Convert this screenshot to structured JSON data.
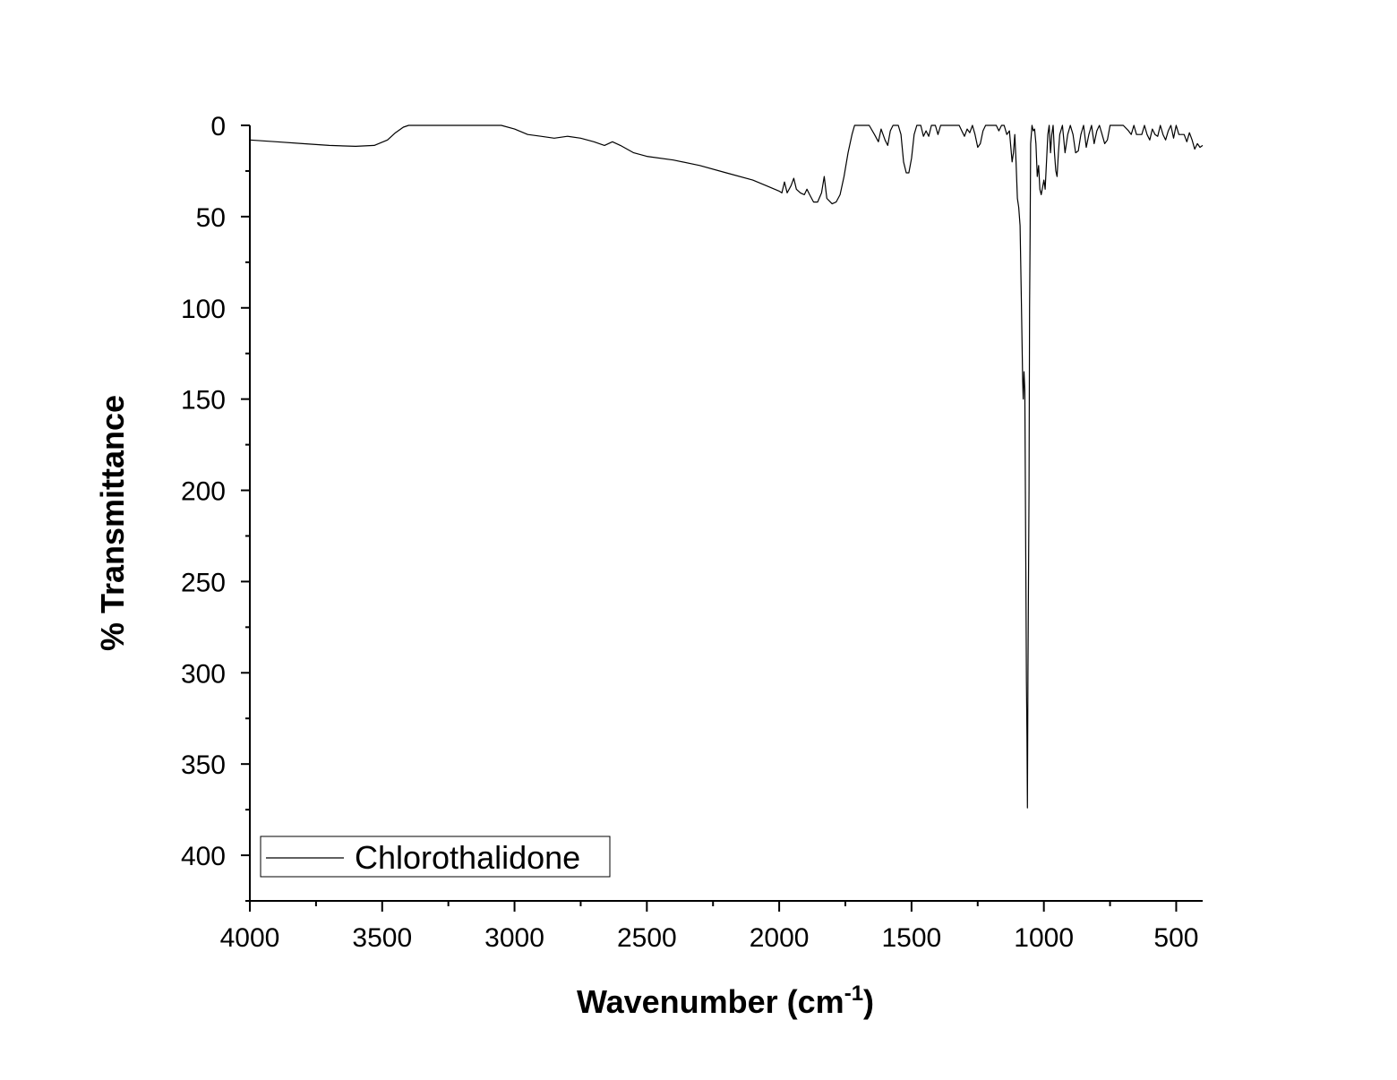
{
  "chart_data": {
    "type": "line",
    "title": "",
    "xlabel": {
      "text": "Wavenumber (cm",
      "superscript": "-1",
      "suffix": ")"
    },
    "ylabel": "% Transmittance",
    "xlim": [
      4000,
      400
    ],
    "ylim": [
      0,
      425
    ],
    "y_inverted": true,
    "x_inverted": true,
    "xticks": [
      4000,
      3500,
      3000,
      2500,
      2000,
      1500,
      1000,
      500
    ],
    "xtick_labels": [
      "4000",
      "3500",
      "3000",
      "2500",
      "2000",
      "1500",
      "1000",
      "500"
    ],
    "yticks": [
      0,
      50,
      100,
      150,
      200,
      250,
      300,
      350,
      400
    ],
    "ytick_labels": [
      "0",
      "50",
      "100",
      "150",
      "200",
      "250",
      "300",
      "350",
      "400"
    ],
    "grid": false,
    "legend_position": "bottom-left",
    "series": [
      {
        "name": "Chlorothalidone",
        "color": "#000000",
        "points": [
          [
            4000,
            8
          ],
          [
            3900,
            9
          ],
          [
            3800,
            10
          ],
          [
            3700,
            11
          ],
          [
            3600,
            11.5
          ],
          [
            3530,
            11
          ],
          [
            3480,
            8
          ],
          [
            3450,
            4
          ],
          [
            3420,
            1
          ],
          [
            3400,
            0
          ],
          [
            3300,
            0
          ],
          [
            3200,
            0
          ],
          [
            3100,
            0
          ],
          [
            3050,
            0
          ],
          [
            3000,
            2
          ],
          [
            2950,
            5
          ],
          [
            2900,
            6
          ],
          [
            2850,
            7
          ],
          [
            2800,
            6
          ],
          [
            2750,
            7
          ],
          [
            2700,
            9
          ],
          [
            2660,
            11
          ],
          [
            2630,
            9
          ],
          [
            2600,
            11
          ],
          [
            2550,
            15
          ],
          [
            2500,
            17
          ],
          [
            2400,
            19
          ],
          [
            2300,
            22
          ],
          [
            2200,
            26
          ],
          [
            2100,
            30
          ],
          [
            2050,
            33
          ],
          [
            2000,
            36
          ],
          [
            1990,
            37
          ],
          [
            1980,
            31
          ],
          [
            1970,
            37
          ],
          [
            1955,
            33
          ],
          [
            1945,
            29
          ],
          [
            1935,
            35
          ],
          [
            1920,
            37
          ],
          [
            1905,
            38
          ],
          [
            1895,
            35
          ],
          [
            1885,
            38
          ],
          [
            1870,
            42
          ],
          [
            1855,
            42
          ],
          [
            1840,
            37
          ],
          [
            1830,
            28
          ],
          [
            1820,
            40
          ],
          [
            1800,
            43
          ],
          [
            1785,
            42
          ],
          [
            1770,
            38
          ],
          [
            1755,
            28
          ],
          [
            1740,
            15
          ],
          [
            1725,
            5
          ],
          [
            1715,
            0
          ],
          [
            1680,
            0
          ],
          [
            1660,
            0
          ],
          [
            1640,
            5
          ],
          [
            1625,
            9
          ],
          [
            1615,
            2
          ],
          [
            1600,
            8
          ],
          [
            1590,
            11
          ],
          [
            1580,
            3
          ],
          [
            1570,
            0
          ],
          [
            1550,
            0
          ],
          [
            1540,
            5
          ],
          [
            1530,
            20
          ],
          [
            1520,
            26
          ],
          [
            1510,
            26
          ],
          [
            1500,
            18
          ],
          [
            1490,
            5
          ],
          [
            1480,
            0
          ],
          [
            1465,
            0
          ],
          [
            1455,
            6
          ],
          [
            1445,
            3
          ],
          [
            1435,
            6
          ],
          [
            1425,
            0
          ],
          [
            1410,
            0
          ],
          [
            1400,
            5
          ],
          [
            1390,
            0
          ],
          [
            1370,
            0
          ],
          [
            1340,
            0
          ],
          [
            1320,
            0
          ],
          [
            1310,
            3
          ],
          [
            1300,
            6
          ],
          [
            1290,
            2
          ],
          [
            1280,
            4
          ],
          [
            1270,
            0
          ],
          [
            1260,
            5
          ],
          [
            1250,
            12
          ],
          [
            1240,
            10
          ],
          [
            1230,
            3
          ],
          [
            1220,
            0
          ],
          [
            1200,
            0
          ],
          [
            1180,
            0
          ],
          [
            1170,
            3
          ],
          [
            1160,
            0
          ],
          [
            1150,
            0
          ],
          [
            1140,
            5
          ],
          [
            1130,
            3
          ],
          [
            1120,
            20
          ],
          [
            1115,
            15
          ],
          [
            1110,
            5
          ],
          [
            1105,
            20
          ],
          [
            1100,
            40
          ],
          [
            1095,
            45
          ],
          [
            1090,
            55
          ],
          [
            1085,
            95
          ],
          [
            1080,
            140
          ],
          [
            1078,
            150
          ],
          [
            1075,
            135
          ],
          [
            1072,
            145
          ],
          [
            1068,
            250
          ],
          [
            1066,
            305
          ],
          [
            1064,
            335
          ],
          [
            1062,
            374
          ],
          [
            1060,
            300
          ],
          [
            1058,
            250
          ],
          [
            1056,
            200
          ],
          [
            1054,
            100
          ],
          [
            1052,
            60
          ],
          [
            1050,
            10
          ],
          [
            1045,
            0
          ],
          [
            1040,
            3
          ],
          [
            1035,
            2
          ],
          [
            1030,
            10
          ],
          [
            1025,
            28
          ],
          [
            1020,
            22
          ],
          [
            1015,
            35
          ],
          [
            1010,
            38
          ],
          [
            1000,
            30
          ],
          [
            995,
            35
          ],
          [
            990,
            20
          ],
          [
            985,
            5
          ],
          [
            980,
            0
          ],
          [
            975,
            15
          ],
          [
            970,
            5
          ],
          [
            965,
            0
          ],
          [
            960,
            15
          ],
          [
            955,
            25
          ],
          [
            950,
            28
          ],
          [
            945,
            15
          ],
          [
            940,
            5
          ],
          [
            930,
            0
          ],
          [
            920,
            15
          ],
          [
            910,
            5
          ],
          [
            900,
            0
          ],
          [
            890,
            5
          ],
          [
            880,
            15
          ],
          [
            870,
            14
          ],
          [
            860,
            5
          ],
          [
            850,
            0
          ],
          [
            840,
            12
          ],
          [
            830,
            5
          ],
          [
            820,
            0
          ],
          [
            810,
            10
          ],
          [
            800,
            3
          ],
          [
            790,
            0
          ],
          [
            780,
            5
          ],
          [
            770,
            10
          ],
          [
            760,
            8
          ],
          [
            750,
            0
          ],
          [
            740,
            0
          ],
          [
            700,
            0
          ],
          [
            680,
            3
          ],
          [
            670,
            5
          ],
          [
            660,
            0
          ],
          [
            650,
            5
          ],
          [
            640,
            5
          ],
          [
            630,
            5
          ],
          [
            620,
            0
          ],
          [
            610,
            5
          ],
          [
            600,
            8
          ],
          [
            590,
            2
          ],
          [
            580,
            5
          ],
          [
            570,
            6
          ],
          [
            560,
            0
          ],
          [
            550,
            5
          ],
          [
            540,
            8
          ],
          [
            530,
            3
          ],
          [
            520,
            0
          ],
          [
            510,
            7
          ],
          [
            500,
            0
          ],
          [
            490,
            5
          ],
          [
            480,
            5
          ],
          [
            470,
            5
          ],
          [
            460,
            9
          ],
          [
            450,
            4
          ],
          [
            440,
            8
          ],
          [
            430,
            13
          ],
          [
            420,
            10
          ],
          [
            410,
            12
          ],
          [
            400,
            11
          ]
        ]
      }
    ]
  }
}
